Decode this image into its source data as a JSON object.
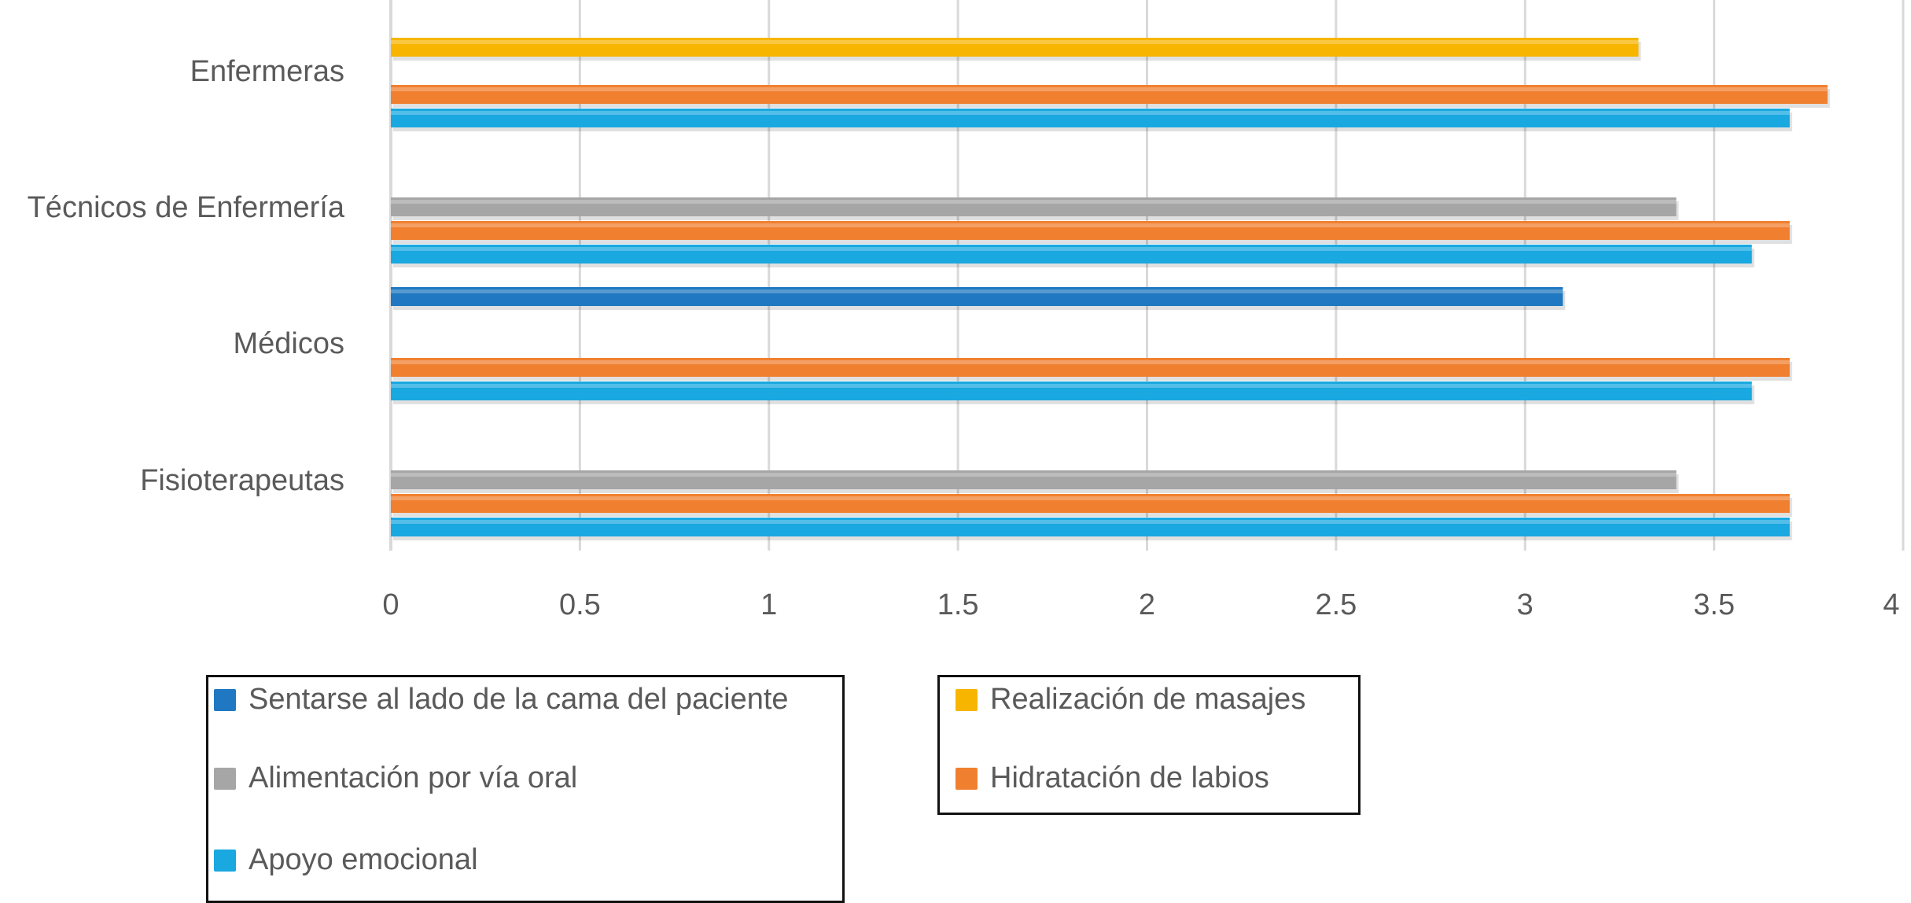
{
  "chart_data": {
    "type": "bar",
    "orientation": "horizontal",
    "categories": [
      "Enfermeras",
      "Técnicos de Enfermería",
      "Médicos",
      "Fisioterapeutas"
    ],
    "series": [
      {
        "name": "Sentarse al lado de la cama del paciente",
        "color": "#1f78c1",
        "values": [
          null,
          null,
          3.1,
          null
        ]
      },
      {
        "name": "Realización de masajes",
        "color": "#f7b500",
        "values": [
          3.3,
          null,
          null,
          null
        ]
      },
      {
        "name": "Alimentación por vía oral",
        "color": "#a6a6a6",
        "values": [
          null,
          3.4,
          null,
          3.4
        ]
      },
      {
        "name": "Hidratación de labios",
        "color": "#f08030",
        "values": [
          3.8,
          3.7,
          3.7,
          3.7
        ]
      },
      {
        "name": "Apoyo emocional",
        "color": "#1aa8e0",
        "values": [
          3.7,
          3.6,
          3.6,
          3.7
        ]
      }
    ],
    "xlim": [
      0,
      4
    ],
    "xticks": [
      "0",
      "0.5",
      "1",
      "1.5",
      "2",
      "2.5",
      "3",
      "3.5",
      "4"
    ],
    "grid": true,
    "legend_position": "bottom"
  }
}
